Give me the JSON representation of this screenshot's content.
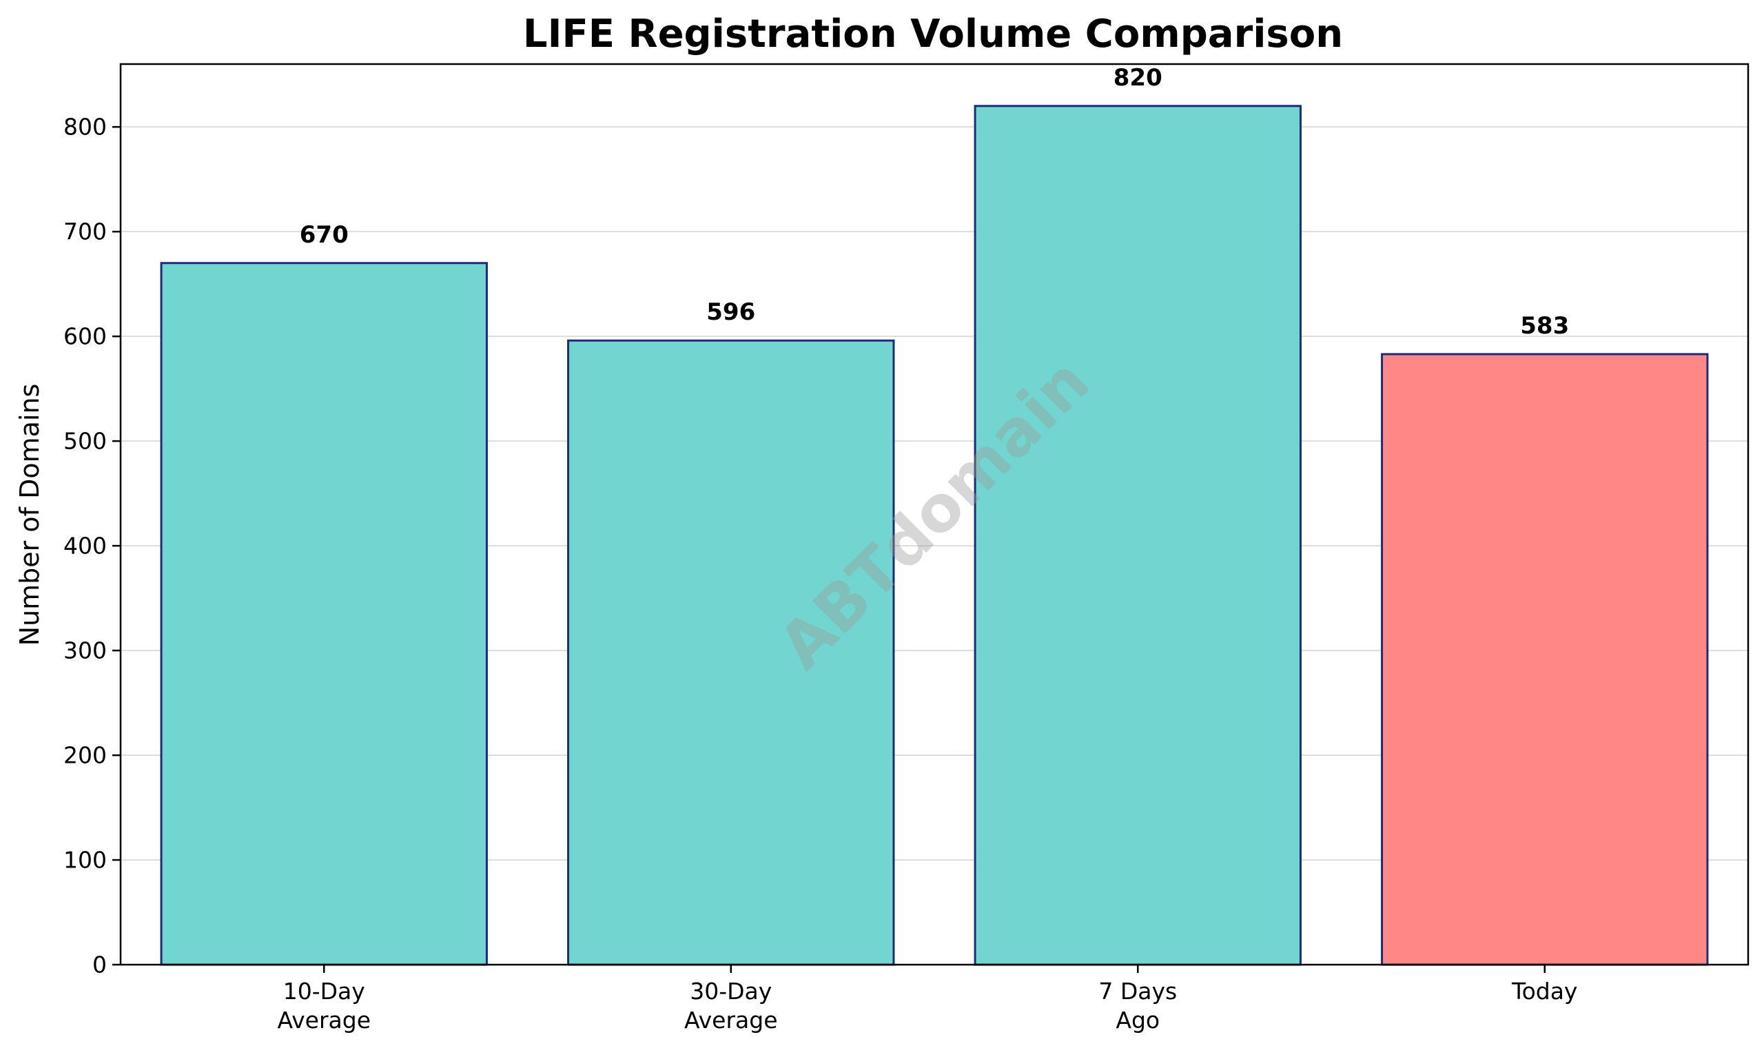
{
  "chart_data": {
    "type": "bar",
    "title": "LIFE Registration Volume Comparison",
    "xlabel": "",
    "ylabel": "Number of Domains",
    "categories": [
      [
        "10-Day",
        "Average"
      ],
      [
        "30-Day",
        "Average"
      ],
      [
        "7 Days",
        "Ago"
      ],
      [
        "Today"
      ]
    ],
    "values": [
      670,
      596,
      820,
      583
    ],
    "bar_colors": [
      "#72D5CF",
      "#72D5CF",
      "#72D5CF",
      "#FF8886"
    ],
    "edge_color": "#1E2A7A",
    "ylim": [
      0,
      860
    ],
    "yticks": [
      0,
      100,
      200,
      300,
      400,
      500,
      600,
      700,
      800
    ],
    "grid": "horizontal",
    "watermark": "ABTdomain"
  }
}
